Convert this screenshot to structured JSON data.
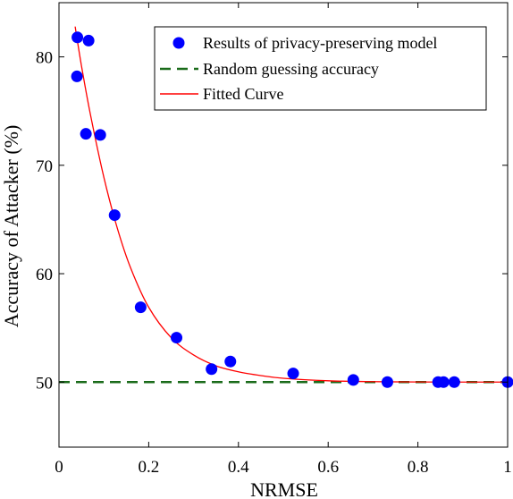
{
  "chart_data": {
    "type": "scatter",
    "xlabel": "NRMSE",
    "ylabel": "Accuracy of Attacker (%)",
    "xlim": [
      0,
      1
    ],
    "ylim": [
      44,
      85
    ],
    "xticks": [
      0,
      0.2,
      0.4,
      0.6,
      0.8,
      1
    ],
    "xtick_labels": [
      "0",
      "0.2",
      "0.4",
      "0.6",
      "0.8",
      "1"
    ],
    "yticks": [
      50,
      60,
      70,
      80
    ],
    "ytick_labels": [
      "50",
      "60",
      "70",
      "80"
    ],
    "grid": false,
    "legend_position": "top-right",
    "series": [
      {
        "name": "Results of privacy-preserving model",
        "kind": "scatter",
        "color": "#0000ff",
        "points": [
          [
            0.041,
            81.8
          ],
          [
            0.066,
            81.5
          ],
          [
            0.04,
            78.2
          ],
          [
            0.06,
            72.9
          ],
          [
            0.092,
            72.8
          ],
          [
            0.124,
            65.4
          ],
          [
            0.182,
            56.9
          ],
          [
            0.262,
            54.1
          ],
          [
            0.34,
            51.2
          ],
          [
            0.382,
            51.9
          ],
          [
            0.522,
            50.8
          ],
          [
            0.656,
            50.2
          ],
          [
            0.732,
            50.0
          ],
          [
            0.845,
            50.0
          ],
          [
            0.857,
            50.0
          ],
          [
            0.881,
            50.0
          ],
          [
            1.0,
            50.0
          ]
        ]
      },
      {
        "name": "Random guessing accuracy",
        "kind": "line",
        "style": "dashed",
        "color": "#1a6b1a",
        "points": [
          [
            0,
            50
          ],
          [
            1,
            50
          ]
        ]
      },
      {
        "name": "Fitted Curve",
        "kind": "line",
        "style": "solid",
        "color": "#ff0000",
        "points": [
          [
            0.036,
            82.8
          ],
          [
            0.05,
            79.2
          ],
          [
            0.07,
            74.7
          ],
          [
            0.1,
            68.9
          ],
          [
            0.13,
            64.2
          ],
          [
            0.16,
            60.5
          ],
          [
            0.2,
            56.9
          ],
          [
            0.25,
            54.1
          ],
          [
            0.3,
            52.5
          ],
          [
            0.35,
            51.5
          ],
          [
            0.4,
            50.95
          ],
          [
            0.45,
            50.6
          ],
          [
            0.5,
            50.35
          ],
          [
            0.6,
            50.12
          ],
          [
            0.7,
            50.04
          ],
          [
            0.8,
            50.01
          ],
          [
            1.0,
            50.0
          ]
        ]
      }
    ]
  }
}
